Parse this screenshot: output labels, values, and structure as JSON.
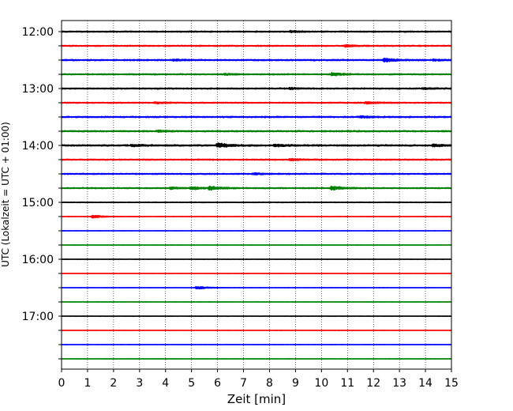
{
  "chart_data": {
    "type": "line",
    "title": "",
    "xlabel": "Zeit  [min]",
    "ylabel": "UTC (Lokalzeit = UTC + 01:00)",
    "xlim": [
      0,
      15
    ],
    "xticks": [
      0,
      1,
      2,
      3,
      4,
      5,
      6,
      7,
      8,
      9,
      10,
      11,
      12,
      13,
      14,
      15
    ],
    "grid": "vertical dotted",
    "time_start": "12:00",
    "minutes_per_trace": 15,
    "hour_labels": [
      "12:00",
      "13:00",
      "14:00",
      "15:00",
      "16:00",
      "17:00"
    ],
    "colors_cycle": [
      "#000000",
      "#ff0000",
      "#0000ff",
      "#008000"
    ],
    "traces": [
      {
        "start": "12:00",
        "color": "#000000",
        "noise": 0.55,
        "events": [
          [
            8.8,
            0.9
          ]
        ]
      },
      {
        "start": "12:15",
        "color": "#ff0000",
        "noise": 0.5,
        "events": [
          [
            10.9,
            1.3
          ]
        ]
      },
      {
        "start": "12:30",
        "color": "#0000ff",
        "noise": 0.6,
        "events": [
          [
            12.4,
            2.4
          ],
          [
            4.3,
            0.9
          ],
          [
            14.3,
            0.8
          ]
        ]
      },
      {
        "start": "12:45",
        "color": "#008000",
        "noise": 0.55,
        "events": [
          [
            10.4,
            2.0
          ],
          [
            6.3,
            0.8
          ]
        ]
      },
      {
        "start": "13:00",
        "color": "#000000",
        "noise": 0.55,
        "events": [
          [
            8.8,
            1.0
          ],
          [
            13.9,
            0.8
          ]
        ]
      },
      {
        "start": "13:15",
        "color": "#ff0000",
        "noise": 0.5,
        "events": [
          [
            11.7,
            1.4
          ],
          [
            3.6,
            0.9
          ]
        ]
      },
      {
        "start": "13:30",
        "color": "#0000ff",
        "noise": 0.6,
        "events": [
          [
            11.5,
            1.0
          ]
        ]
      },
      {
        "start": "13:45",
        "color": "#008000",
        "noise": 0.6,
        "events": [
          [
            3.7,
            0.9
          ]
        ]
      },
      {
        "start": "14:00",
        "color": "#000000",
        "noise": 0.7,
        "events": [
          [
            6.0,
            3.0
          ],
          [
            2.7,
            1.0
          ],
          [
            8.2,
            1.2
          ],
          [
            14.3,
            1.3
          ]
        ]
      },
      {
        "start": "14:15",
        "color": "#ff0000",
        "noise": 0.55,
        "events": [
          [
            8.8,
            1.2
          ]
        ]
      },
      {
        "start": "14:30",
        "color": "#0000ff",
        "noise": 0.5,
        "events": [
          [
            7.4,
            1.0
          ]
        ]
      },
      {
        "start": "14:45",
        "color": "#008000",
        "noise": 0.5,
        "events": [
          [
            5.7,
            2.6
          ],
          [
            10.4,
            2.7
          ],
          [
            5.0,
            1.8
          ],
          [
            4.2,
            1.2
          ]
        ]
      },
      {
        "start": "15:00",
        "color": "#000000",
        "noise": 0.3,
        "events": []
      },
      {
        "start": "15:15",
        "color": "#ff0000",
        "noise": 0.2,
        "events": [
          [
            1.2,
            2.0
          ]
        ]
      },
      {
        "start": "15:30",
        "color": "#0000ff",
        "noise": 0.15,
        "events": []
      },
      {
        "start": "15:45",
        "color": "#008000",
        "noise": 0.15,
        "events": []
      },
      {
        "start": "16:00",
        "color": "#000000",
        "noise": 0.15,
        "events": []
      },
      {
        "start": "16:15",
        "color": "#ff0000",
        "noise": 0.15,
        "events": []
      },
      {
        "start": "16:30",
        "color": "#0000ff",
        "noise": 0.15,
        "events": [
          [
            5.2,
            2.0
          ]
        ]
      },
      {
        "start": "16:45",
        "color": "#008000",
        "noise": 0.15,
        "events": []
      },
      {
        "start": "17:00",
        "color": "#000000",
        "noise": 0.15,
        "events": []
      },
      {
        "start": "17:15",
        "color": "#ff0000",
        "noise": 0.15,
        "events": []
      },
      {
        "start": "17:30",
        "color": "#0000ff",
        "noise": 0.15,
        "events": []
      },
      {
        "start": "17:45",
        "color": "#008000",
        "noise": 0.15,
        "events": []
      }
    ]
  }
}
